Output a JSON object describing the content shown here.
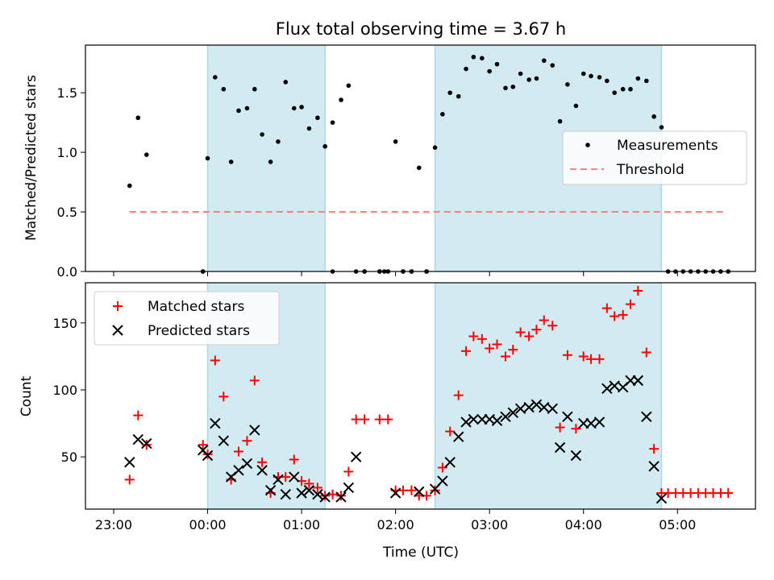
{
  "chart_data": {
    "type": "scatter",
    "title": "Flux total observing time = 3.67 h",
    "xlabel": "Time (UTC)",
    "x_ticks": [
      "23:00",
      "00:00",
      "01:00",
      "02:00",
      "03:00",
      "04:00",
      "05:00"
    ],
    "x_tick_hours": [
      -1,
      0,
      1,
      2,
      3,
      4,
      5
    ],
    "xlim": [
      -1.3,
      5.83
    ],
    "shaded_intervals": [
      [
        0.0,
        1.25
      ],
      [
        2.42,
        4.83
      ]
    ],
    "colors": {
      "shade": "#add8e6",
      "matched": "#ff0000",
      "predicted": "#000000",
      "measurement": "#000000",
      "threshold": "#ff7f7f"
    },
    "top_panel": {
      "ylabel": "Matched/Predicted stars",
      "ylim": [
        0,
        1.9
      ],
      "y_ticks": [
        0.0,
        0.5,
        1.0,
        1.5
      ],
      "y_tick_labels": [
        "0.0",
        "0.5",
        "1.0",
        "1.5"
      ],
      "legend": {
        "position": "center-right",
        "entries": [
          "Measurements",
          "Threshold"
        ]
      },
      "threshold": {
        "value": 0.5,
        "x_range": [
          -0.83,
          5.5
        ]
      },
      "measurements": {
        "x": [
          -0.83,
          -0.74,
          -0.65,
          -0.05,
          0.0,
          0.08,
          0.17,
          0.25,
          0.33,
          0.42,
          0.5,
          0.58,
          0.67,
          0.75,
          0.83,
          0.92,
          1.0,
          1.08,
          1.17,
          1.25,
          1.33,
          1.42,
          1.5,
          1.58,
          1.67,
          1.83,
          1.92,
          2.0,
          2.08,
          2.17,
          2.25,
          2.33,
          2.42,
          2.5,
          2.58,
          2.67,
          2.75,
          2.83,
          2.92,
          3.0,
          3.08,
          3.17,
          3.25,
          3.33,
          3.42,
          3.5,
          3.58,
          3.67,
          3.75,
          3.83,
          3.92,
          4.0,
          4.08,
          4.17,
          4.25,
          4.33,
          4.42,
          4.5,
          4.58,
          4.67,
          4.75,
          4.83,
          4.9,
          4.98,
          5.06,
          5.14,
          5.22,
          5.3,
          5.38,
          5.46,
          5.54
        ],
        "y": [
          0.72,
          1.29,
          0.98,
          0.0,
          0.95,
          1.63,
          1.53,
          0.92,
          1.35,
          1.37,
          1.53,
          1.15,
          0.92,
          1.09,
          1.59,
          1.37,
          1.38,
          1.2,
          1.29,
          1.05,
          1.25,
          1.44,
          1.56,
          0.0,
          0.0,
          0.0,
          0.0,
          1.09,
          0.0,
          0.0,
          0.87,
          0.0,
          1.04,
          1.32,
          1.5,
          1.47,
          1.7,
          1.8,
          1.79,
          1.68,
          1.74,
          1.54,
          1.55,
          1.66,
          1.61,
          1.62,
          1.77,
          1.73,
          1.26,
          1.57,
          1.39,
          1.66,
          1.64,
          1.63,
          1.6,
          1.5,
          1.53,
          1.53,
          1.62,
          1.6,
          1.3,
          1.21,
          0.0,
          0.0,
          0.0,
          0.0,
          0.0,
          0.0,
          0.0,
          0.0,
          0.0
        ]
      },
      "extra_zero_points_x": [
        -0.05,
        1.33,
        1.67,
        1.83,
        1.88,
        2.08,
        2.17,
        2.33
      ]
    },
    "bottom_panel": {
      "ylabel": "Count",
      "ylim": [
        11,
        180
      ],
      "y_ticks": [
        50,
        100,
        150
      ],
      "y_tick_labels": [
        "50",
        "100",
        "150"
      ],
      "legend": {
        "position": "upper-left",
        "entries": [
          "Matched stars",
          "Predicted stars"
        ]
      },
      "series": [
        {
          "name": "Matched stars",
          "marker": "plus",
          "x": [
            -0.83,
            -0.74,
            -0.65,
            -0.05,
            0.0,
            0.08,
            0.17,
            0.25,
            0.33,
            0.42,
            0.5,
            0.58,
            0.67,
            0.75,
            0.83,
            0.92,
            1.0,
            1.08,
            1.17,
            1.25,
            1.33,
            1.42,
            1.5,
            1.58,
            1.67,
            1.83,
            1.92,
            2.0,
            2.08,
            2.17,
            2.25,
            2.33,
            2.42,
            2.5,
            2.58,
            2.67,
            2.75,
            2.83,
            2.92,
            3.0,
            3.08,
            3.17,
            3.25,
            3.33,
            3.42,
            3.5,
            3.58,
            3.67,
            3.75,
            3.83,
            3.92,
            4.0,
            4.08,
            4.17,
            4.25,
            4.33,
            4.42,
            4.5,
            4.58,
            4.67,
            4.75,
            4.83,
            4.9,
            4.98,
            5.06,
            5.14,
            5.22,
            5.3,
            5.38,
            5.46,
            5.54
          ],
          "y": [
            33,
            81,
            59,
            59,
            52,
            122,
            95,
            33,
            54,
            62,
            107,
            46,
            23,
            35,
            35,
            48,
            32,
            30,
            27,
            21,
            22,
            21,
            39,
            78,
            78,
            78,
            78,
            25,
            25,
            25,
            21,
            21,
            25,
            42,
            69,
            96,
            129,
            140,
            138,
            131,
            134,
            125,
            130,
            143,
            140,
            145,
            152,
            148,
            72,
            126,
            71,
            125,
            123,
            123,
            161,
            155,
            156,
            164,
            174,
            128,
            56,
            23,
            23,
            23,
            23,
            23,
            23,
            23,
            23,
            23,
            23
          ]
        },
        {
          "name": "Predicted stars",
          "marker": "x",
          "x": [
            -0.83,
            -0.74,
            -0.65,
            -0.05,
            0.0,
            0.08,
            0.17,
            0.25,
            0.33,
            0.42,
            0.5,
            0.58,
            0.67,
            0.75,
            0.83,
            0.92,
            1.0,
            1.08,
            1.17,
            1.25,
            1.42,
            1.5,
            1.58,
            2.0,
            2.25,
            2.42,
            2.5,
            2.58,
            2.67,
            2.75,
            2.83,
            2.92,
            3.0,
            3.08,
            3.17,
            3.25,
            3.33,
            3.42,
            3.5,
            3.58,
            3.67,
            3.75,
            3.83,
            3.92,
            4.0,
            4.08,
            4.17,
            4.25,
            4.33,
            4.42,
            4.5,
            4.58,
            4.67,
            4.75,
            4.83
          ],
          "y": [
            46,
            63,
            60,
            55,
            51,
            75,
            62,
            35,
            40,
            45,
            70,
            40,
            25,
            33,
            22,
            35,
            23,
            25,
            22,
            20,
            20,
            27,
            50,
            23,
            24,
            26,
            32,
            46,
            65,
            76,
            78,
            78,
            78,
            77,
            80,
            83,
            86,
            87,
            89,
            87,
            86,
            57,
            80,
            51,
            75,
            75,
            76,
            101,
            103,
            102,
            107,
            107,
            80,
            43,
            19
          ]
        }
      ]
    }
  }
}
